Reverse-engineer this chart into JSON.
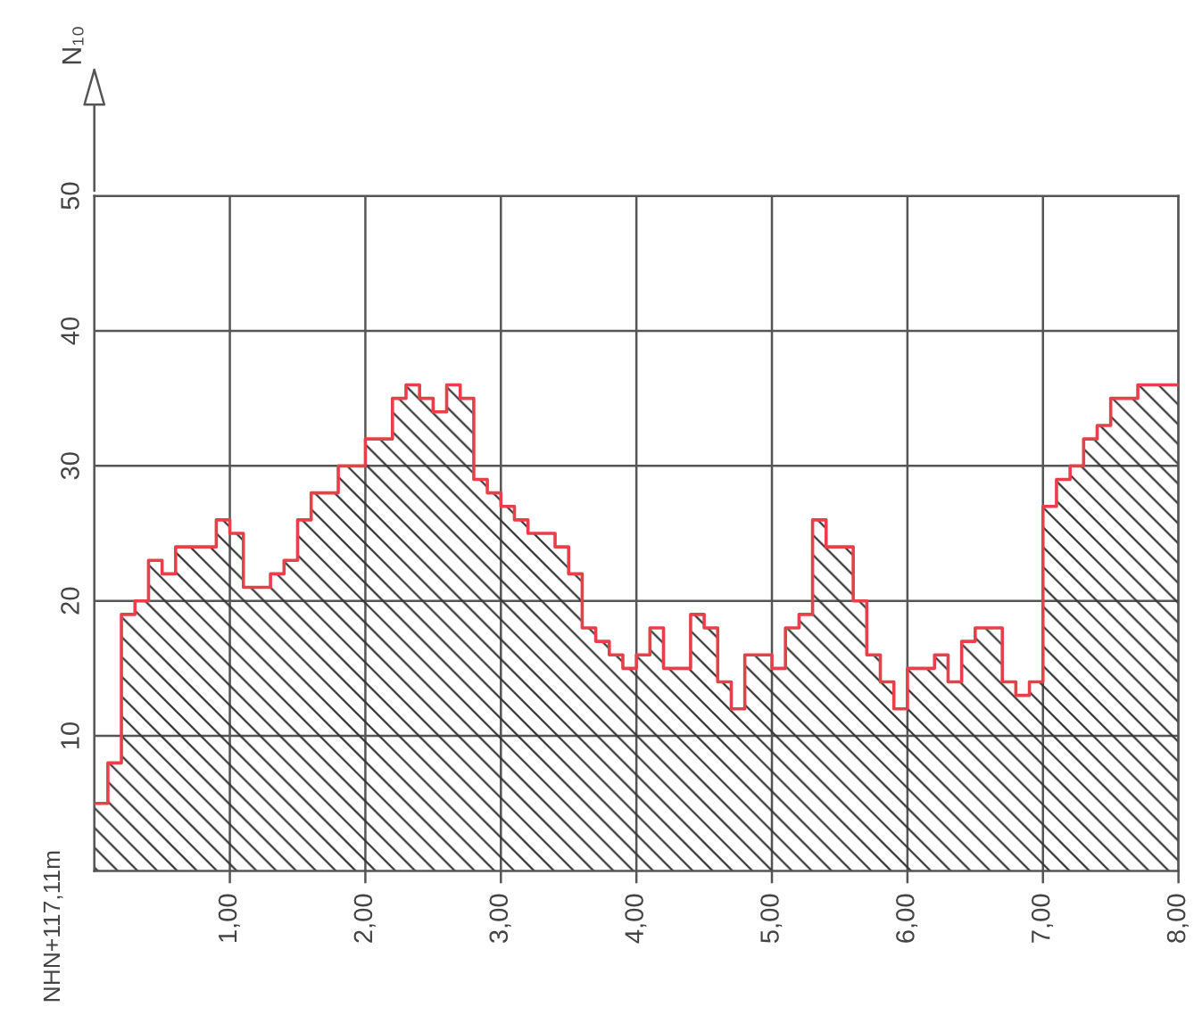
{
  "chart_data": {
    "type": "area",
    "ylabel": "N₁₀",
    "x": [
      0,
      0.1,
      0.1,
      0.2,
      0.2,
      0.3,
      0.3,
      0.4,
      0.4,
      0.5,
      0.5,
      0.6,
      0.6,
      0.7,
      0.7,
      0.9,
      0.9,
      1.0,
      1.0,
      1.1,
      1.1,
      1.3,
      1.3,
      1.4,
      1.4,
      1.5,
      1.5,
      1.6,
      1.6,
      1.8,
      1.8,
      2.0,
      2.0,
      2.2,
      2.2,
      2.3,
      2.3,
      2.4,
      2.4,
      2.5,
      2.5,
      2.6,
      2.6,
      2.7,
      2.7,
      2.8,
      2.8,
      2.9,
      2.9,
      3.0,
      3.0,
      3.1,
      3.1,
      3.2,
      3.2,
      3.4,
      3.4,
      3.5,
      3.5,
      3.6,
      3.6,
      3.7,
      3.7,
      3.8,
      3.8,
      3.9,
      3.9,
      4.0,
      4.0,
      4.1,
      4.1,
      4.2,
      4.2,
      4.4,
      4.4,
      4.5,
      4.5,
      4.6,
      4.6,
      4.7,
      4.7,
      4.8,
      4.8,
      5.0,
      5.0,
      5.1,
      5.1,
      5.2,
      5.2,
      5.3,
      5.3,
      5.4,
      5.4,
      5.6,
      5.6,
      5.7,
      5.7,
      5.8,
      5.8,
      5.9,
      5.9,
      6.0,
      6.0,
      6.2,
      6.2,
      6.3,
      6.3,
      6.4,
      6.4,
      6.5,
      6.5,
      6.7,
      6.7,
      6.8,
      6.8,
      6.9,
      6.9,
      7.0,
      7.0,
      7.1,
      7.1,
      7.2,
      7.2,
      7.3,
      7.3,
      7.4,
      7.4,
      7.5,
      7.5,
      7.7,
      7.7,
      8.0
    ],
    "series": [
      {
        "color": "#e8404a",
        "values": [
          5,
          5,
          8,
          8,
          19,
          19,
          20,
          20,
          23,
          23,
          22,
          22,
          24,
          24,
          24,
          24,
          26,
          26,
          25,
          25,
          21,
          21,
          22,
          22,
          23,
          23,
          26,
          26,
          28,
          28,
          30,
          30,
          32,
          32,
          35,
          35,
          36,
          36,
          35,
          35,
          34,
          34,
          36,
          36,
          35,
          35,
          29,
          29,
          28,
          28,
          27,
          27,
          26,
          26,
          25,
          25,
          24,
          24,
          22,
          22,
          18,
          18,
          17,
          17,
          16,
          16,
          15,
          15,
          16,
          16,
          18,
          18,
          15,
          15,
          19,
          19,
          18,
          18,
          14,
          14,
          12,
          12,
          16,
          16,
          15,
          15,
          18,
          18,
          19,
          19,
          26,
          26,
          24,
          24,
          20,
          20,
          16,
          16,
          14,
          14,
          12,
          12,
          15,
          15,
          16,
          16,
          14,
          14,
          17,
          17,
          18,
          18,
          14,
          14,
          13,
          13,
          14,
          14,
          27,
          27,
          29,
          29,
          30,
          30,
          32,
          32,
          33,
          33,
          35,
          35,
          36,
          36
        ]
      }
    ],
    "xlim": [
      0,
      8
    ],
    "ylim": [
      0,
      50
    ],
    "xticks": [
      {
        "value": 1,
        "label": "1,00"
      },
      {
        "value": 2,
        "label": "2,00"
      },
      {
        "value": 3,
        "label": "3,00"
      },
      {
        "value": 4,
        "label": "4,00"
      },
      {
        "value": 5,
        "label": "5,00"
      },
      {
        "value": 6,
        "label": "6,00"
      },
      {
        "value": 7,
        "label": "7,00"
      },
      {
        "value": 8,
        "label": "8,00"
      }
    ],
    "yticks": [
      10,
      20,
      30,
      40,
      50
    ],
    "grid": true,
    "annotations": [
      "NHN+117,11m"
    ]
  }
}
